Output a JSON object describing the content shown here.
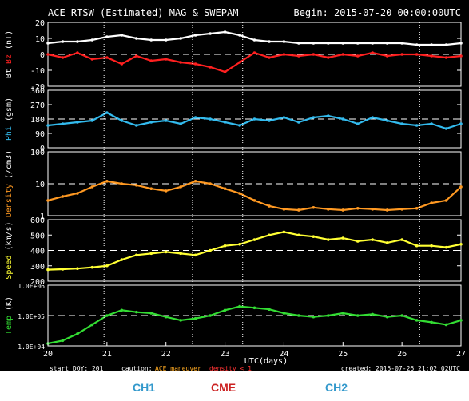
{
  "chart_data": {
    "type": "scatter",
    "header": {
      "title": "ACE RTSW (Estimated) MAG & SWEPAM",
      "begin": "Begin: 2015-07-20 00:00:00UTC"
    },
    "x": {
      "label": "UTC(days)",
      "range": [
        20,
        27
      ],
      "ticks": [
        "20",
        "21",
        "22",
        "23",
        "24",
        "25",
        "26",
        "27"
      ],
      "event_lines": [
        20.95,
        22.45,
        23.3,
        26.3
      ]
    },
    "panels": [
      {
        "id": "mag",
        "ylabel_parts": [
          {
            "text": "Bt",
            "color": "#ffffff"
          },
          {
            "text": " Bz ",
            "color": "#ff2020"
          },
          {
            "text": "(nT)",
            "color": "#ffffff"
          }
        ],
        "ylim": [
          -20,
          20
        ],
        "yticks": [
          "20",
          "10",
          "0",
          "-10",
          "-20"
        ],
        "ytick_values": [
          20,
          10,
          0,
          -10,
          -20
        ],
        "log": false,
        "dashed_ref": 0,
        "series": [
          {
            "name": "Bt",
            "color": "#ffffff",
            "x": [
              20,
              20.25,
              20.5,
              20.75,
              21,
              21.25,
              21.5,
              21.75,
              22,
              22.25,
              22.5,
              22.75,
              23,
              23.25,
              23.5,
              23.75,
              24,
              24.25,
              24.5,
              24.75,
              25,
              25.25,
              25.5,
              25.75,
              26,
              26.25,
              26.5,
              26.75,
              27
            ],
            "y": [
              7,
              8,
              8,
              9,
              11,
              12,
              10,
              9,
              9,
              10,
              12,
              13,
              14,
              12,
              9,
              8,
              8,
              7,
              7,
              7,
              7,
              7,
              7,
              7,
              7,
              6,
              6,
              6,
              7
            ]
          },
          {
            "name": "Bz",
            "color": "#ff2020",
            "x": [
              20,
              20.25,
              20.5,
              20.75,
              21,
              21.25,
              21.5,
              21.75,
              22,
              22.25,
              22.5,
              22.75,
              23,
              23.25,
              23.5,
              23.75,
              24,
              24.25,
              24.5,
              24.75,
              25,
              25.25,
              25.5,
              25.75,
              26,
              26.25,
              26.5,
              26.75,
              27
            ],
            "y": [
              0,
              -2,
              1,
              -3,
              -2,
              -6,
              -1,
              -4,
              -3,
              -5,
              -6,
              -8,
              -11,
              -5,
              1,
              -2,
              0,
              -1,
              0,
              -2,
              0,
              -1,
              1,
              -1,
              0,
              0,
              -1,
              -2,
              -1
            ]
          }
        ]
      },
      {
        "id": "phi",
        "ylabel_parts": [
          {
            "text": "Phi ",
            "color": "#33bbee"
          },
          {
            "text": "(gsm)",
            "color": "#ffffff"
          }
        ],
        "ylim": [
          0,
          360
        ],
        "yticks": [
          "360",
          "270",
          "180",
          "90",
          "0"
        ],
        "ytick_values": [
          360,
          270,
          180,
          90,
          0
        ],
        "log": false,
        "dashed_ref": 180,
        "series": [
          {
            "name": "Phi",
            "color": "#33bbee",
            "x": [
              20,
              20.25,
              20.5,
              20.75,
              21,
              21.25,
              21.5,
              21.75,
              22,
              22.25,
              22.5,
              22.75,
              23,
              23.25,
              23.5,
              23.75,
              24,
              24.25,
              24.5,
              24.75,
              25,
              25.25,
              25.5,
              25.75,
              26,
              26.25,
              26.5,
              26.75,
              27
            ],
            "y": [
              140,
              150,
              160,
              170,
              220,
              170,
              140,
              160,
              170,
              150,
              190,
              180,
              160,
              140,
              180,
              170,
              190,
              160,
              190,
              200,
              180,
              150,
              190,
              170,
              150,
              140,
              150,
              120,
              150
            ]
          }
        ]
      },
      {
        "id": "density",
        "ylabel_parts": [
          {
            "text": "Density ",
            "color": "#ff9922"
          },
          {
            "text": "(/cm3)",
            "color": "#ffffff"
          }
        ],
        "ylim": [
          1,
          100
        ],
        "yticks": [
          "100",
          "10",
          "1"
        ],
        "ytick_values": [
          100,
          10,
          1
        ],
        "log": true,
        "dashed_ref": 10,
        "series": [
          {
            "name": "Density",
            "color": "#ff9922",
            "x": [
              20,
              20.25,
              20.5,
              20.75,
              21,
              21.25,
              21.5,
              21.75,
              22,
              22.25,
              22.5,
              22.75,
              23,
              23.25,
              23.5,
              23.75,
              24,
              24.25,
              24.5,
              24.75,
              25,
              25.25,
              25.5,
              25.75,
              26,
              26.25,
              26.5,
              26.75,
              27
            ],
            "y": [
              3,
              4,
              5,
              8,
              12,
              10,
              9,
              7,
              6,
              8,
              12,
              10,
              7,
              5,
              3,
              2,
              1.6,
              1.5,
              1.8,
              1.6,
              1.5,
              1.7,
              1.6,
              1.5,
              1.6,
              1.7,
              2.5,
              3,
              8
            ]
          }
        ]
      },
      {
        "id": "speed",
        "ylabel_parts": [
          {
            "text": "Speed ",
            "color": "#ffff33"
          },
          {
            "text": "(km/s)",
            "color": "#ffffff"
          }
        ],
        "ylim": [
          200,
          600
        ],
        "yticks": [
          "600",
          "500",
          "400",
          "300",
          "200"
        ],
        "ytick_values": [
          600,
          500,
          400,
          300,
          200
        ],
        "log": false,
        "dashed_ref": 400,
        "series": [
          {
            "name": "Speed",
            "color": "#ffff33",
            "x": [
              20,
              20.25,
              20.5,
              20.75,
              21,
              21.25,
              21.5,
              21.75,
              22,
              22.25,
              22.5,
              22.75,
              23,
              23.25,
              23.5,
              23.75,
              24,
              24.25,
              24.5,
              24.75,
              25,
              25.25,
              25.5,
              25.75,
              26,
              26.25,
              26.5,
              26.75,
              27
            ],
            "y": [
              275,
              278,
              282,
              290,
              300,
              340,
              370,
              380,
              390,
              380,
              370,
              400,
              430,
              440,
              470,
              500,
              520,
              500,
              490,
              470,
              480,
              460,
              470,
              450,
              470,
              430,
              430,
              420,
              440
            ]
          }
        ]
      },
      {
        "id": "temp",
        "ylabel_parts": [
          {
            "text": "Temp ",
            "color": "#33dd33"
          },
          {
            "text": "(K)",
            "color": "#ffffff"
          }
        ],
        "ylim": [
          10000,
          1000000
        ],
        "yticks": [
          "1.0E+06",
          "1.0E+05",
          "1.0E+04"
        ],
        "ytick_values": [
          1000000,
          100000,
          10000
        ],
        "log": true,
        "dashed_ref": 100000,
        "series": [
          {
            "name": "Temp",
            "color": "#33dd33",
            "x": [
              20,
              20.25,
              20.5,
              20.75,
              21,
              21.25,
              21.5,
              21.75,
              22,
              22.25,
              22.5,
              22.75,
              23,
              23.25,
              23.5,
              23.75,
              24,
              24.25,
              24.5,
              24.75,
              25,
              25.25,
              25.5,
              25.75,
              26,
              26.25,
              26.5,
              26.75,
              27
            ],
            "y": [
              12000,
              15000,
              25000,
              50000,
              100000,
              150000,
              130000,
              120000,
              90000,
              70000,
              80000,
              100000,
              150000,
              200000,
              180000,
              160000,
              120000,
              100000,
              90000,
              100000,
              120000,
              100000,
              110000,
              90000,
              100000,
              70000,
              60000,
              50000,
              70000
            ]
          }
        ]
      }
    ]
  },
  "footer": {
    "start_doy": "start DOY: 201",
    "caution_label": "caution:",
    "caution_ace": "ACE maneuver",
    "caution_density": "density < 1",
    "created": "created: 2015-07-26  21:02:02UTC"
  },
  "annotations": [
    {
      "label": "CH1",
      "color": "#3399cc"
    },
    {
      "label": "CME",
      "color": "#cc2222"
    },
    {
      "label": "CH2",
      "color": "#3399cc"
    }
  ]
}
